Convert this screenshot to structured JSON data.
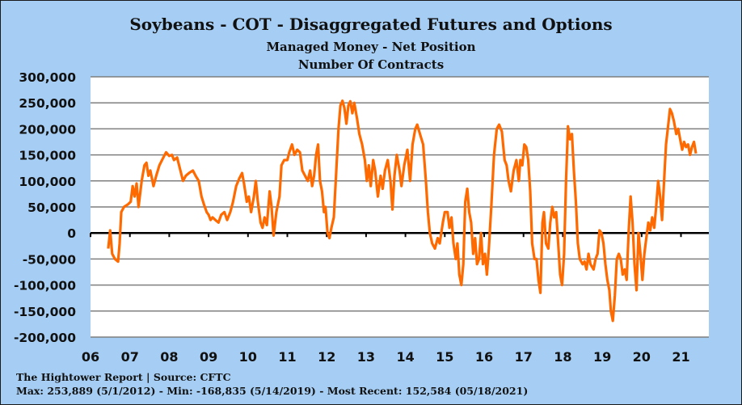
{
  "chart_data": {
    "type": "line",
    "title": "Soybeans - COT - Disaggregated Futures and Options",
    "subtitle": "Managed Money - Net Position",
    "subtitle2": "Number Of Contracts",
    "xlabel": "",
    "ylabel": "",
    "ylim": [
      -200000,
      300000
    ],
    "xlim": [
      2006,
      2021.85
    ],
    "y_ticks": [
      300000,
      250000,
      200000,
      150000,
      100000,
      50000,
      0,
      -50000,
      -100000,
      -150000,
      -200000
    ],
    "y_tick_labels": [
      "300,000",
      "250,000",
      "200,000",
      "150,000",
      "100,000",
      "50,000",
      "0",
      "-50,000",
      "-100,000",
      "-150,000",
      "-200,000"
    ],
    "x_tick_labels": [
      "06",
      "07",
      "08",
      "09",
      "10",
      "11",
      "12",
      "13",
      "14",
      "15",
      "16",
      "17",
      "18",
      "19",
      "20",
      "21"
    ],
    "grid": true,
    "legend": "none",
    "line_color": "#ff6a00",
    "series": [
      {
        "name": "Managed Money Net Position",
        "points": [
          [
            2006.45,
            -30000
          ],
          [
            2006.5,
            5000
          ],
          [
            2006.55,
            -40000
          ],
          [
            2006.62,
            -50000
          ],
          [
            2006.7,
            -55000
          ],
          [
            2006.74,
            -20000
          ],
          [
            2006.78,
            40000
          ],
          [
            2006.85,
            50000
          ],
          [
            2006.95,
            55000
          ],
          [
            2007.02,
            60000
          ],
          [
            2007.07,
            90000
          ],
          [
            2007.12,
            70000
          ],
          [
            2007.17,
            95000
          ],
          [
            2007.22,
            50000
          ],
          [
            2007.3,
            100000
          ],
          [
            2007.37,
            130000
          ],
          [
            2007.42,
            135000
          ],
          [
            2007.47,
            110000
          ],
          [
            2007.52,
            120000
          ],
          [
            2007.6,
            90000
          ],
          [
            2007.67,
            110000
          ],
          [
            2007.75,
            130000
          ],
          [
            2007.85,
            145000
          ],
          [
            2007.92,
            155000
          ],
          [
            2008.0,
            148000
          ],
          [
            2008.07,
            150000
          ],
          [
            2008.12,
            140000
          ],
          [
            2008.2,
            145000
          ],
          [
            2008.3,
            115000
          ],
          [
            2008.35,
            100000
          ],
          [
            2008.42,
            110000
          ],
          [
            2008.5,
            115000
          ],
          [
            2008.6,
            120000
          ],
          [
            2008.67,
            110000
          ],
          [
            2008.75,
            100000
          ],
          [
            2008.82,
            70000
          ],
          [
            2008.88,
            55000
          ],
          [
            2008.95,
            40000
          ],
          [
            2009.0,
            35000
          ],
          [
            2009.05,
            25000
          ],
          [
            2009.1,
            30000
          ],
          [
            2009.17,
            25000
          ],
          [
            2009.25,
            20000
          ],
          [
            2009.32,
            35000
          ],
          [
            2009.4,
            40000
          ],
          [
            2009.47,
            25000
          ],
          [
            2009.55,
            40000
          ],
          [
            2009.62,
            60000
          ],
          [
            2009.7,
            90000
          ],
          [
            2009.78,
            105000
          ],
          [
            2009.85,
            115000
          ],
          [
            2009.9,
            95000
          ],
          [
            2009.97,
            60000
          ],
          [
            2010.02,
            70000
          ],
          [
            2010.08,
            40000
          ],
          [
            2010.15,
            70000
          ],
          [
            2010.2,
            100000
          ],
          [
            2010.25,
            60000
          ],
          [
            2010.32,
            20000
          ],
          [
            2010.37,
            10000
          ],
          [
            2010.42,
            30000
          ],
          [
            2010.48,
            15000
          ],
          [
            2010.55,
            80000
          ],
          [
            2010.6,
            50000
          ],
          [
            2010.65,
            -5000
          ],
          [
            2010.72,
            40000
          ],
          [
            2010.8,
            70000
          ],
          [
            2010.85,
            130000
          ],
          [
            2010.92,
            140000
          ],
          [
            2011.0,
            140000
          ],
          [
            2011.05,
            155000
          ],
          [
            2011.12,
            170000
          ],
          [
            2011.18,
            150000
          ],
          [
            2011.25,
            160000
          ],
          [
            2011.32,
            155000
          ],
          [
            2011.38,
            120000
          ],
          [
            2011.45,
            110000
          ],
          [
            2011.52,
            100000
          ],
          [
            2011.58,
            120000
          ],
          [
            2011.63,
            90000
          ],
          [
            2011.68,
            110000
          ],
          [
            2011.73,
            150000
          ],
          [
            2011.78,
            170000
          ],
          [
            2011.83,
            100000
          ],
          [
            2011.88,
            80000
          ],
          [
            2011.93,
            40000
          ],
          [
            2011.97,
            50000
          ],
          [
            2012.02,
            0
          ],
          [
            2012.07,
            -10000
          ],
          [
            2012.12,
            10000
          ],
          [
            2012.18,
            30000
          ],
          [
            2012.25,
            130000
          ],
          [
            2012.3,
            200000
          ],
          [
            2012.35,
            245000
          ],
          [
            2012.4,
            253889
          ],
          [
            2012.45,
            240000
          ],
          [
            2012.5,
            210000
          ],
          [
            2012.55,
            245000
          ],
          [
            2012.6,
            253000
          ],
          [
            2012.65,
            230000
          ],
          [
            2012.7,
            250000
          ],
          [
            2012.77,
            220000
          ],
          [
            2012.83,
            190000
          ],
          [
            2012.9,
            170000
          ],
          [
            2012.97,
            140000
          ],
          [
            2013.02,
            100000
          ],
          [
            2013.07,
            130000
          ],
          [
            2013.12,
            90000
          ],
          [
            2013.18,
            140000
          ],
          [
            2013.23,
            120000
          ],
          [
            2013.3,
            70000
          ],
          [
            2013.37,
            110000
          ],
          [
            2013.42,
            85000
          ],
          [
            2013.48,
            120000
          ],
          [
            2013.55,
            140000
          ],
          [
            2013.62,
            100000
          ],
          [
            2013.67,
            45000
          ],
          [
            2013.72,
            110000
          ],
          [
            2013.78,
            150000
          ],
          [
            2013.85,
            120000
          ],
          [
            2013.9,
            90000
          ],
          [
            2013.97,
            130000
          ],
          [
            2014.05,
            160000
          ],
          [
            2014.12,
            100000
          ],
          [
            2014.18,
            170000
          ],
          [
            2014.25,
            200000
          ],
          [
            2014.3,
            208000
          ],
          [
            2014.37,
            190000
          ],
          [
            2014.45,
            170000
          ],
          [
            2014.52,
            100000
          ],
          [
            2014.57,
            40000
          ],
          [
            2014.62,
            0
          ],
          [
            2014.68,
            -20000
          ],
          [
            2014.75,
            -30000
          ],
          [
            2014.82,
            -10000
          ],
          [
            2014.87,
            -20000
          ],
          [
            2014.95,
            20000
          ],
          [
            2015.0,
            40000
          ],
          [
            2015.07,
            40000
          ],
          [
            2015.12,
            10000
          ],
          [
            2015.17,
            30000
          ],
          [
            2015.22,
            -20000
          ],
          [
            2015.28,
            -50000
          ],
          [
            2015.32,
            -20000
          ],
          [
            2015.37,
            -80000
          ],
          [
            2015.42,
            -100000
          ],
          [
            2015.47,
            -60000
          ],
          [
            2015.52,
            60000
          ],
          [
            2015.57,
            85000
          ],
          [
            2015.62,
            40000
          ],
          [
            2015.67,
            20000
          ],
          [
            2015.72,
            -40000
          ],
          [
            2015.77,
            -10000
          ],
          [
            2015.82,
            -60000
          ],
          [
            2015.87,
            -50000
          ],
          [
            2015.92,
            0
          ],
          [
            2015.97,
            -60000
          ],
          [
            2016.02,
            -40000
          ],
          [
            2016.07,
            -80000
          ],
          [
            2016.12,
            -30000
          ],
          [
            2016.18,
            50000
          ],
          [
            2016.25,
            150000
          ],
          [
            2016.32,
            200000
          ],
          [
            2016.38,
            208000
          ],
          [
            2016.45,
            195000
          ],
          [
            2016.52,
            140000
          ],
          [
            2016.57,
            130000
          ],
          [
            2016.62,
            100000
          ],
          [
            2016.68,
            80000
          ],
          [
            2016.75,
            120000
          ],
          [
            2016.82,
            140000
          ],
          [
            2016.88,
            100000
          ],
          [
            2016.92,
            140000
          ],
          [
            2016.97,
            130000
          ],
          [
            2017.02,
            170000
          ],
          [
            2017.07,
            165000
          ],
          [
            2017.12,
            140000
          ],
          [
            2017.17,
            80000
          ],
          [
            2017.22,
            -20000
          ],
          [
            2017.28,
            -50000
          ],
          [
            2017.33,
            -50000
          ],
          [
            2017.38,
            -90000
          ],
          [
            2017.43,
            -115000
          ],
          [
            2017.48,
            20000
          ],
          [
            2017.52,
            40000
          ],
          [
            2017.57,
            -20000
          ],
          [
            2017.63,
            -30000
          ],
          [
            2017.68,
            20000
          ],
          [
            2017.73,
            50000
          ],
          [
            2017.78,
            30000
          ],
          [
            2017.83,
            40000
          ],
          [
            2017.88,
            -20000
          ],
          [
            2017.93,
            -80000
          ],
          [
            2017.98,
            -100000
          ],
          [
            2018.03,
            -40000
          ],
          [
            2018.08,
            100000
          ],
          [
            2018.13,
            205000
          ],
          [
            2018.18,
            180000
          ],
          [
            2018.23,
            190000
          ],
          [
            2018.28,
            120000
          ],
          [
            2018.33,
            60000
          ],
          [
            2018.38,
            -20000
          ],
          [
            2018.43,
            -50000
          ],
          [
            2018.5,
            -60000
          ],
          [
            2018.55,
            -55000
          ],
          [
            2018.6,
            -70000
          ],
          [
            2018.65,
            -40000
          ],
          [
            2018.7,
            -60000
          ],
          [
            2018.78,
            -70000
          ],
          [
            2018.83,
            -50000
          ],
          [
            2018.88,
            -40000
          ],
          [
            2018.93,
            5000
          ],
          [
            2018.98,
            0
          ],
          [
            2019.03,
            -20000
          ],
          [
            2019.08,
            -60000
          ],
          [
            2019.13,
            -90000
          ],
          [
            2019.18,
            -110000
          ],
          [
            2019.22,
            -150000
          ],
          [
            2019.27,
            -168835
          ],
          [
            2019.32,
            -120000
          ],
          [
            2019.37,
            -50000
          ],
          [
            2019.42,
            -40000
          ],
          [
            2019.47,
            -50000
          ],
          [
            2019.52,
            -80000
          ],
          [
            2019.57,
            -70000
          ],
          [
            2019.62,
            -90000
          ],
          [
            2019.67,
            0
          ],
          [
            2019.72,
            70000
          ],
          [
            2019.77,
            20000
          ],
          [
            2019.82,
            -60000
          ],
          [
            2019.87,
            -110000
          ],
          [
            2019.92,
            0
          ],
          [
            2019.97,
            -40000
          ],
          [
            2020.02,
            -90000
          ],
          [
            2020.07,
            -40000
          ],
          [
            2020.12,
            -10000
          ],
          [
            2020.17,
            20000
          ],
          [
            2020.22,
            5000
          ],
          [
            2020.27,
            30000
          ],
          [
            2020.32,
            10000
          ],
          [
            2020.37,
            50000
          ],
          [
            2020.42,
            100000
          ],
          [
            2020.47,
            70000
          ],
          [
            2020.52,
            25000
          ],
          [
            2020.57,
            100000
          ],
          [
            2020.62,
            170000
          ],
          [
            2020.68,
            210000
          ],
          [
            2020.72,
            238000
          ],
          [
            2020.77,
            230000
          ],
          [
            2020.82,
            215000
          ],
          [
            2020.88,
            190000
          ],
          [
            2020.93,
            200000
          ],
          [
            2020.98,
            180000
          ],
          [
            2021.03,
            160000
          ],
          [
            2021.08,
            175000
          ],
          [
            2021.13,
            165000
          ],
          [
            2021.18,
            170000
          ],
          [
            2021.23,
            150000
          ],
          [
            2021.28,
            165000
          ],
          [
            2021.33,
            175000
          ],
          [
            2021.38,
            152584
          ]
        ]
      }
    ]
  },
  "footer": {
    "source": "The Hightower Report | Source: CFTC",
    "stats": "Max: 253,889 (5/1/2012)  -  Min: -168,835 (5/14/2019) - Most Recent: 152,584 (05/18/2021)"
  }
}
